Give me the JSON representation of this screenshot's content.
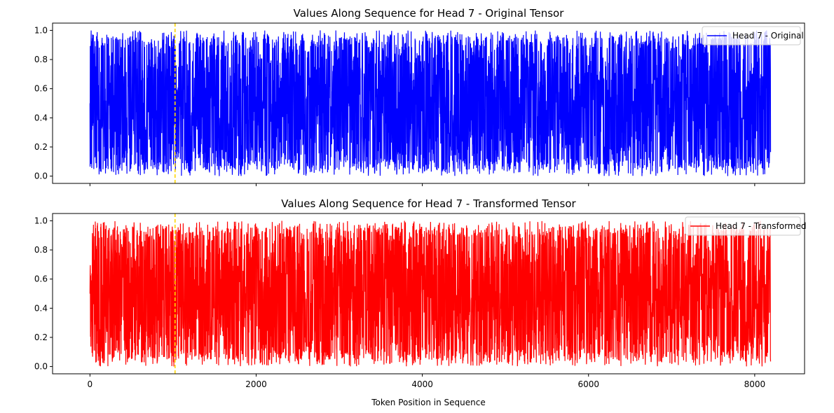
{
  "chart_data": [
    {
      "type": "line",
      "title": "Values Along Sequence for Head 7 - Original Tensor",
      "xlabel": "",
      "ylabel": "",
      "xlim": [
        -450,
        8600
      ],
      "ylim": [
        -0.05,
        1.05
      ],
      "xticks": [
        0,
        2000,
        4000,
        6000,
        8000
      ],
      "show_xtick_labels": false,
      "yticks": [
        0.0,
        0.2,
        0.4,
        0.6,
        0.8,
        1.0
      ],
      "ytick_labels": [
        "0.0",
        "0.2",
        "0.4",
        "0.6",
        "0.8",
        "1.0"
      ],
      "grid": false,
      "legend_position": "upper right",
      "series": [
        {
          "name": "Head 7 - Original",
          "color": "#0000ff",
          "x_range": [
            0,
            8191
          ],
          "value_range": [
            0.0,
            1.0
          ],
          "pattern": "dense noisy signal (random values between 0 and 1 at every token)"
        }
      ],
      "vline": {
        "x": 1024,
        "color": "#ffd700",
        "style": "dashed"
      }
    },
    {
      "type": "line",
      "title": "Values Along Sequence for Head 7 - Transformed Tensor",
      "xlabel": "Token Position in Sequence",
      "ylabel": "",
      "xlim": [
        -450,
        8600
      ],
      "ylim": [
        -0.05,
        1.05
      ],
      "xticks": [
        0,
        2000,
        4000,
        6000,
        8000
      ],
      "xtick_labels": [
        "0",
        "2000",
        "4000",
        "6000",
        "8000"
      ],
      "show_xtick_labels": true,
      "yticks": [
        0.0,
        0.2,
        0.4,
        0.6,
        0.8,
        1.0
      ],
      "ytick_labels": [
        "0.0",
        "0.2",
        "0.4",
        "0.6",
        "0.8",
        "1.0"
      ],
      "grid": false,
      "legend_position": "upper right",
      "series": [
        {
          "name": "Head 7 - Transformed",
          "color": "#ff0000",
          "x_range": [
            0,
            8191
          ],
          "value_range": [
            0.0,
            1.0
          ],
          "pattern": "dense noisy signal (random values between 0 and 1 at every token)"
        }
      ],
      "vline": {
        "x": 1024,
        "color": "#ffd700",
        "style": "dashed"
      }
    }
  ]
}
